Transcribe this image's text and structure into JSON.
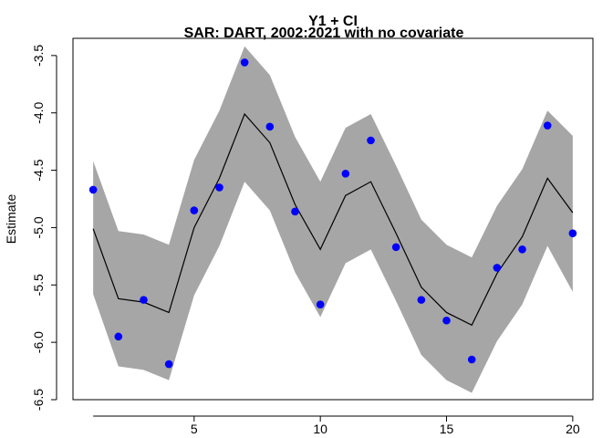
{
  "chart_data": {
    "type": "line",
    "title": "Y1 + CI",
    "subtitle": "SAR: DART, 2002:2021 with no covariate",
    "xlabel": "",
    "ylabel": "Estimate",
    "xlim": [
      0.2,
      20.8
    ],
    "ylim": [
      -6.5,
      -3.35
    ],
    "y_reversed": true,
    "x_ticks": [
      5,
      10,
      15,
      20
    ],
    "y_ticks": [
      -3.5,
      -4.0,
      -4.5,
      -5.0,
      -5.5,
      -6.0,
      -6.5
    ],
    "y_tick_labels": [
      "-3.5",
      "-4.0",
      "-4.5",
      "-5.0",
      "-5.5",
      "-6.0",
      "-6.5"
    ],
    "grid": false,
    "x": [
      1,
      2,
      3,
      4,
      5,
      6,
      7,
      8,
      9,
      10,
      11,
      12,
      13,
      14,
      15,
      16,
      17,
      18,
      19,
      20
    ],
    "series": [
      {
        "role": "fit",
        "style": "line",
        "color": "#000000",
        "values": [
          -5.01,
          -5.62,
          -5.65,
          -5.74,
          -5.0,
          -4.57,
          -4.01,
          -4.26,
          -4.8,
          -5.19,
          -4.72,
          -4.6,
          -5.05,
          -5.52,
          -5.74,
          -5.85,
          -5.4,
          -5.08,
          -4.57,
          -4.87
        ]
      },
      {
        "role": "ci_band",
        "style": "band",
        "color": "#a6a6a6",
        "lower": [
          -5.58,
          -6.21,
          -6.24,
          -6.33,
          -5.59,
          -5.16,
          -4.6,
          -4.85,
          -5.39,
          -5.78,
          -5.31,
          -5.19,
          -5.64,
          -6.11,
          -6.33,
          -6.44,
          -5.99,
          -5.67,
          -5.16,
          -5.56
        ],
        "upper": [
          -4.42,
          -5.03,
          -5.06,
          -5.15,
          -4.41,
          -3.98,
          -3.42,
          -3.67,
          -4.21,
          -4.6,
          -4.13,
          -4.01,
          -4.46,
          -4.93,
          -5.15,
          -5.26,
          -4.81,
          -4.49,
          -3.98,
          -4.2
        ]
      },
      {
        "role": "observed",
        "style": "points",
        "color": "#0000ff",
        "values": [
          -4.67,
          -5.95,
          -5.63,
          -6.19,
          -4.85,
          -4.65,
          -3.56,
          -4.12,
          -4.86,
          -5.67,
          -4.53,
          -4.24,
          -5.17,
          -5.63,
          -5.81,
          -6.15,
          -5.35,
          -5.19,
          -4.11,
          -5.05
        ]
      }
    ]
  }
}
